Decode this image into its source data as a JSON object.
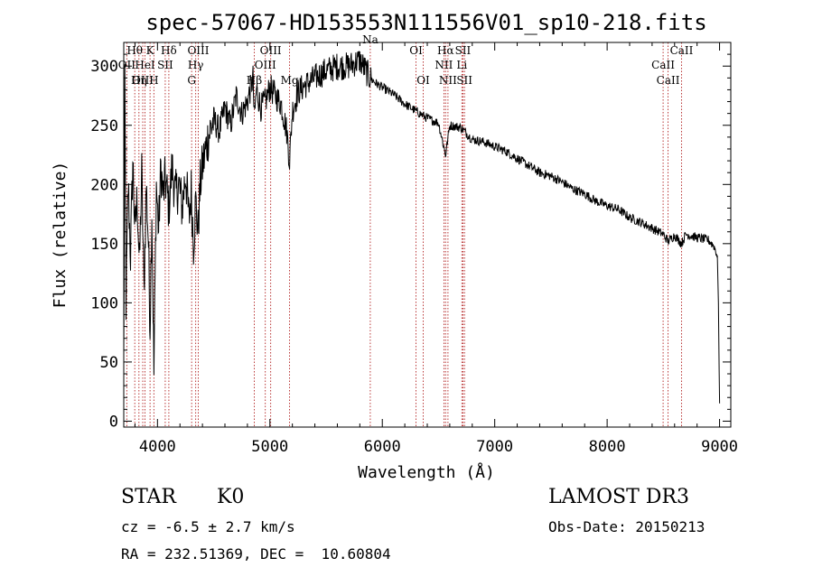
{
  "chart_data": {
    "type": "line",
    "title": "spec-57067-HD153553N111556V01_sp10-218.fits",
    "xlabel": "Wavelength (Å)",
    "ylabel": "Flux (relative)",
    "xlim": [
      3700,
      9100
    ],
    "ylim": [
      -5,
      320
    ],
    "xticks": [
      4000,
      5000,
      6000,
      7000,
      8000,
      9000
    ],
    "yticks": [
      0,
      50,
      100,
      150,
      200,
      250,
      300
    ],
    "grid": false,
    "series": [
      {
        "name": "spectrum",
        "x": [
          3700,
          3710,
          3720,
          3740,
          3760,
          3780,
          3800,
          3820,
          3840,
          3860,
          3880,
          3900,
          3920,
          3934,
          3950,
          3968,
          3990,
          4010,
          4030,
          4050,
          4070,
          4101,
          4130,
          4160,
          4190,
          4220,
          4250,
          4280,
          4300,
          4320,
          4340,
          4361,
          4380,
          4400,
          4450,
          4500,
          4550,
          4600,
          4650,
          4700,
          4750,
          4800,
          4850,
          4861,
          4880,
          4920,
          4960,
          5000,
          5050,
          5100,
          5150,
          5175,
          5200,
          5250,
          5300,
          5400,
          5500,
          5600,
          5700,
          5800,
          5890,
          5950,
          6000,
          6100,
          6200,
          6300,
          6400,
          6500,
          6563,
          6600,
          6700,
          6800,
          6900,
          7000,
          7100,
          7200,
          7300,
          7400,
          7500,
          7600,
          7700,
          7800,
          7900,
          8000,
          8100,
          8200,
          8300,
          8400,
          8498,
          8542,
          8600,
          8662,
          8700,
          8800,
          8900,
          8950,
          8980,
          8990,
          9000
        ],
        "y": [
          50,
          280,
          100,
          200,
          140,
          220,
          160,
          190,
          130,
          210,
          110,
          200,
          150,
          80,
          180,
          40,
          200,
          160,
          215,
          190,
          205,
          180,
          215,
          190,
          200,
          180,
          210,
          170,
          195,
          150,
          185,
          160,
          200,
          215,
          240,
          255,
          245,
          265,
          250,
          275,
          260,
          270,
          290,
          255,
          280,
          265,
          270,
          282,
          275,
          268,
          245,
          220,
          262,
          278,
          283,
          290,
          296,
          300,
          300,
          305,
          290,
          285,
          282,
          276,
          268,
          262,
          256,
          252,
          225,
          250,
          248,
          238,
          236,
          232,
          228,
          222,
          216,
          210,
          207,
          202,
          196,
          192,
          186,
          182,
          179,
          172,
          168,
          163,
          158,
          152,
          157,
          150,
          158,
          155,
          153,
          148,
          140,
          100,
          15
        ]
      }
    ],
    "lines": [
      {
        "label": "Hθ",
        "x": 3798,
        "row": 1
      },
      {
        "label": "OII",
        "x": 3727,
        "row": 2
      },
      {
        "label": "OIII",
        "x": 3869,
        "row": 3
      },
      {
        "label": "Hη",
        "x": 3835,
        "row": 3
      },
      {
        "label": "K",
        "x": 3934,
        "row": 1
      },
      {
        "label": "HeI",
        "x": 3889,
        "row": 2
      },
      {
        "label": "H",
        "x": 3968,
        "row": 3
      },
      {
        "label": "Hδ",
        "x": 4101,
        "row": 1
      },
      {
        "label": "SII",
        "x": 4069,
        "row": 2
      },
      {
        "label": "OIII",
        "x": 4363,
        "row": 1
      },
      {
        "label": "Hγ",
        "x": 4340,
        "row": 2
      },
      {
        "label": "G",
        "x": 4304,
        "row": 3
      },
      {
        "label": "OIII",
        "x": 5007,
        "row": 1
      },
      {
        "label": "OIII",
        "x": 4959,
        "row": 2
      },
      {
        "label": "Hβ",
        "x": 4861,
        "row": 3
      },
      {
        "label": "Mg",
        "x": 5175,
        "row": 3
      },
      {
        "label": "Na",
        "x": 5893,
        "row": 0
      },
      {
        "label": "OI",
        "x": 6300,
        "row": 1
      },
      {
        "label": "OI",
        "x": 6364,
        "row": 3
      },
      {
        "label": "Hα",
        "x": 6563,
        "row": 1
      },
      {
        "label": "NII",
        "x": 6548,
        "row": 2
      },
      {
        "label": "NII",
        "x": 6584,
        "row": 3
      },
      {
        "label": "SII",
        "x": 6717,
        "row": 1
      },
      {
        "label": "Li",
        "x": 6708,
        "row": 2
      },
      {
        "label": "SII",
        "x": 6731,
        "row": 3
      },
      {
        "label": "CaII",
        "x": 8662,
        "row": 1
      },
      {
        "label": "CaII",
        "x": 8498,
        "row": 2
      },
      {
        "label": "CaII",
        "x": 8542,
        "row": 3
      }
    ]
  },
  "info": {
    "class_label": "STAR",
    "subclass": "K0",
    "survey": "LAMOST DR3",
    "redshift": "cz = -6.5 ± 2.7 km/s",
    "obs_date": "Obs-Date: 20150213",
    "coords": "RA = 232.51369, DEC =  10.60804"
  },
  "colors": {
    "spectrum": "#000000",
    "line_markers": "#b22222"
  }
}
